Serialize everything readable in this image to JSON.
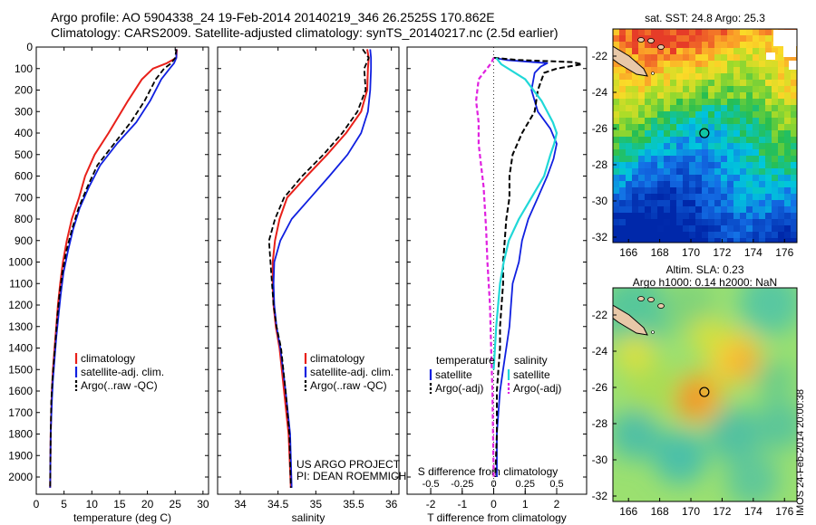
{
  "header": {
    "line1": "Argo profile: AO 5904338_24 19-Feb-2014 20140219_346 26.2525S 170.862E",
    "line2": "Climatology: CARS2009. Satellite-adjusted climatology: synTS_20140217.nc (2.5d earlier)"
  },
  "side_stamp": "IMOS 24-Feb-2014 20:00:38",
  "colors": {
    "climatology": "#e8201a",
    "satellite": "#1020e0",
    "argo": "#000000",
    "sat_salinity": "#20d8d8",
    "argo_salinity": "#e020e0"
  },
  "chart_data": [
    {
      "type": "line",
      "xlabel": "temperature (deg C)",
      "xlim": [
        0,
        31
      ],
      "xticks": [
        "0",
        "5",
        "10",
        "15",
        "20",
        "25",
        "30"
      ],
      "ylim": [
        0,
        2080
      ],
      "yticks": [
        "0",
        "100",
        "200",
        "300",
        "400",
        "500",
        "600",
        "700",
        "800",
        "900",
        "1000",
        "1100",
        "1200",
        "1300",
        "1400",
        "1500",
        "1600",
        "1700",
        "1800",
        "1900",
        "2000"
      ],
      "legend": {
        "entries": [
          "climatology",
          "satellite-adj. clim.",
          "Argo(..raw -QC)"
        ],
        "position": "lower-center"
      },
      "series": [
        {
          "name": "climatology",
          "x": [
            25.3,
            25.2,
            23.5,
            21.0,
            19.0,
            16.5,
            13.0,
            10.5,
            8.8,
            7.7,
            6.4,
            5.5,
            4.8,
            4.3,
            3.9,
            3.6,
            3.3,
            3.0,
            2.8,
            2.6,
            2.5
          ],
          "y": [
            10,
            50,
            75,
            100,
            150,
            250,
            400,
            500,
            600,
            700,
            800,
            900,
            1000,
            1100,
            1200,
            1300,
            1400,
            1500,
            1600,
            1800,
            2050
          ]
        },
        {
          "name": "satellite-adj. clim.",
          "x": [
            25.2,
            25.2,
            24.8,
            24.0,
            22.5,
            20.5,
            18.0,
            14.5,
            11.5,
            9.5,
            7.8,
            6.6,
            5.7,
            4.9,
            4.4,
            4.0,
            3.6,
            3.3,
            3.0,
            2.8,
            2.6,
            2.5
          ],
          "y": [
            10,
            50,
            75,
            100,
            150,
            250,
            350,
            450,
            550,
            650,
            750,
            850,
            950,
            1050,
            1150,
            1250,
            1350,
            1450,
            1550,
            1650,
            1800,
            2050
          ]
        },
        {
          "name": "Argo(..raw -QC)",
          "x": [
            25.2,
            25.0,
            24.3,
            23.0,
            21.5,
            19.5,
            17.0,
            14.0,
            11.0,
            9.2,
            7.6,
            6.4,
            5.4,
            4.7,
            4.2,
            3.8,
            3.5,
            3.2,
            2.9,
            2.7,
            2.6,
            2.5
          ],
          "y": [
            10,
            50,
            75,
            100,
            150,
            250,
            350,
            450,
            550,
            650,
            750,
            850,
            950,
            1050,
            1150,
            1250,
            1350,
            1450,
            1550,
            1650,
            1800,
            2050
          ]
        }
      ]
    },
    {
      "type": "line",
      "xlabel": "salinity",
      "xlim": [
        33.7,
        36.1
      ],
      "xticks": [
        "34",
        "34.5",
        "35",
        "35.5",
        "36"
      ],
      "ylim": [
        0,
        2080
      ],
      "legend": {
        "entries": [
          "climatology",
          "satellite-adj. clim.",
          "Argo(..raw -QC)"
        ],
        "position": "lower-center"
      },
      "series": [
        {
          "name": "climatology",
          "x": [
            35.68,
            35.7,
            35.69,
            35.68,
            35.6,
            35.4,
            35.15,
            34.88,
            34.62,
            34.52,
            34.46,
            34.43,
            34.43,
            34.44,
            34.47,
            34.52,
            34.58,
            34.64,
            34.67
          ],
          "y": [
            10,
            50,
            100,
            200,
            300,
            400,
            500,
            600,
            700,
            800,
            900,
            1000,
            1100,
            1200,
            1300,
            1400,
            1600,
            1800,
            2050
          ]
        },
        {
          "name": "satellite-adj. clim.",
          "x": [
            35.72,
            35.73,
            35.73,
            35.72,
            35.69,
            35.6,
            35.42,
            35.18,
            34.93,
            34.68,
            34.53,
            34.45,
            34.44,
            34.45,
            34.48,
            34.53,
            34.6,
            34.66,
            34.68
          ],
          "y": [
            10,
            50,
            100,
            200,
            300,
            400,
            500,
            600,
            700,
            800,
            900,
            1000,
            1100,
            1200,
            1300,
            1400,
            1600,
            1800,
            2050
          ]
        },
        {
          "name": "Argo(..raw -QC)",
          "x": [
            35.62,
            35.7,
            35.64,
            35.66,
            35.55,
            35.35,
            35.1,
            34.82,
            34.58,
            34.46,
            34.38,
            34.4,
            34.42,
            34.44,
            34.48,
            34.54,
            34.6,
            34.65,
            34.67
          ],
          "y": [
            10,
            50,
            100,
            200,
            300,
            400,
            500,
            600,
            700,
            800,
            900,
            1000,
            1100,
            1200,
            1300,
            1400,
            1600,
            1800,
            2050
          ]
        }
      ],
      "annotations": [
        "US ARGO PROJECT",
        "PI: DEAN ROEMMICH"
      ]
    },
    {
      "type": "line",
      "xlabel": "T difference from climatology",
      "xlabel_top": "S difference from climatology",
      "xlim": [
        -2.75,
        2.95
      ],
      "xticks_T": [
        "-2",
        "-1",
        "0",
        "1",
        "2"
      ],
      "xticks_S": [
        "-0.5",
        "-0.25",
        "0",
        "0.25",
        "0.5"
      ],
      "ylim": [
        0,
        2080
      ],
      "legend": {
        "groups": [
          "temperature",
          "salinity"
        ],
        "entries": [
          "satellite",
          "Argo(-adj)",
          "satellite",
          "Argo(-adj)"
        ],
        "position": "lower-center"
      },
      "series": [
        {
          "name": "temperature satellite",
          "x": [
            0,
            0.4,
            1.7,
            1.5,
            1.3,
            1.2,
            1.4,
            1.8,
            2.0,
            1.9,
            1.7,
            1.4,
            1.1,
            0.9,
            0.8,
            0.6,
            0.55,
            0.5,
            0.4,
            0.3,
            0.2,
            0.15,
            0.1,
            0.1
          ],
          "y": [
            50,
            60,
            75,
            90,
            120,
            200,
            300,
            380,
            450,
            520,
            600,
            700,
            800,
            900,
            1000,
            1100,
            1200,
            1300,
            1400,
            1500,
            1600,
            1700,
            1800,
            2000
          ]
        },
        {
          "name": "temperature Argo(-adj)",
          "x": [
            0,
            0.8,
            2.5,
            2.8,
            2.0,
            1.6,
            1.4,
            1.3,
            0.9,
            0.6,
            0.5,
            0.5,
            0.4,
            0.35,
            0.3,
            0.3,
            0.25,
            0.2,
            0.2,
            0.15,
            0.1,
            0.1,
            0.05
          ],
          "y": [
            50,
            60,
            70,
            80,
            100,
            120,
            200,
            300,
            400,
            500,
            600,
            700,
            800,
            900,
            1000,
            1100,
            1200,
            1300,
            1400,
            1500,
            1600,
            1800,
            2000
          ]
        },
        {
          "name": "salinity satellite",
          "x": [
            0.02,
            0.06,
            0.25,
            0.38,
            0.47,
            0.5,
            0.48,
            0.45,
            0.4,
            0.3,
            0.2,
            0.12,
            0.08,
            0.05,
            0.02,
            0.0
          ],
          "y": [
            50,
            80,
            150,
            250,
            350,
            400,
            450,
            500,
            600,
            700,
            800,
            900,
            1000,
            1100,
            1300,
            1500
          ]
        },
        {
          "name": "salinity Argo(-adj)",
          "x": [
            0,
            -0.02,
            -0.12,
            -0.14,
            -0.12,
            -0.12,
            -0.1,
            -0.08,
            -0.07,
            -0.06,
            -0.05,
            -0.04,
            -0.03,
            -0.02,
            -0.01,
            0
          ],
          "y": [
            50,
            75,
            150,
            250,
            350,
            450,
            550,
            650,
            750,
            850,
            1000,
            1100,
            1200,
            1400,
            1600,
            2000
          ]
        }
      ]
    },
    {
      "type": "heatmap",
      "title": "sat. SST: 24.8 Argo: 25.3",
      "xticks": [
        "166",
        "168",
        "170",
        "172",
        "174",
        "176"
      ],
      "yticks": [
        "-22",
        "-24",
        "-26",
        "-28",
        "-30",
        "-32"
      ],
      "xlim": [
        165,
        176.8
      ],
      "ylim": [
        -32.3,
        -20.5
      ],
      "marker": {
        "lon": 170.862,
        "lat": -26.2525
      }
    },
    {
      "type": "heatmap",
      "title": "Altim. SLA: 0.23",
      "subtitle": "Argo h1000: 0.14 h2000: NaN",
      "xticks": [
        "166",
        "168",
        "170",
        "172",
        "174",
        "176"
      ],
      "yticks": [
        "-22",
        "-24",
        "-26",
        "-28",
        "-30",
        "-32"
      ],
      "xlim": [
        165,
        176.8
      ],
      "ylim": [
        -32.3,
        -20.5
      ],
      "marker": {
        "lon": 170.862,
        "lat": -26.2525
      }
    }
  ]
}
